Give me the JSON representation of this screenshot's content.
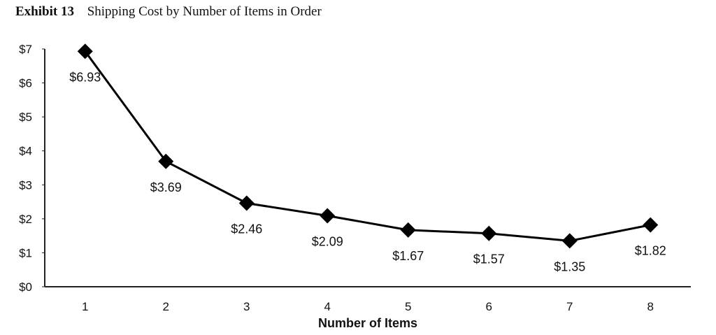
{
  "header": {
    "exhibit": "Exhibit 13",
    "title": "Shipping Cost by Number of Items in Order"
  },
  "chart_data": {
    "type": "line",
    "title": "Shipping Cost by Number of Items in Order",
    "xlabel": "Number of Items",
    "ylabel": "",
    "categories": [
      "1",
      "2",
      "3",
      "4",
      "5",
      "6",
      "7",
      "8"
    ],
    "values": [
      6.93,
      3.69,
      2.46,
      2.09,
      1.67,
      1.57,
      1.35,
      1.82
    ],
    "data_labels": [
      "$6.93",
      "$3.69",
      "$2.46",
      "$2.09",
      "$1.67",
      "$1.57",
      "$1.35",
      "$1.82"
    ],
    "ylim": [
      0,
      7
    ],
    "yticks": [
      0,
      1,
      2,
      3,
      4,
      5,
      6,
      7
    ],
    "ytick_labels": [
      "$0",
      "$1",
      "$2",
      "$3",
      "$4",
      "$5",
      "$6",
      "$7"
    ],
    "marker": "diamond",
    "line_color": "#000000",
    "grid": false,
    "legend": "none"
  }
}
